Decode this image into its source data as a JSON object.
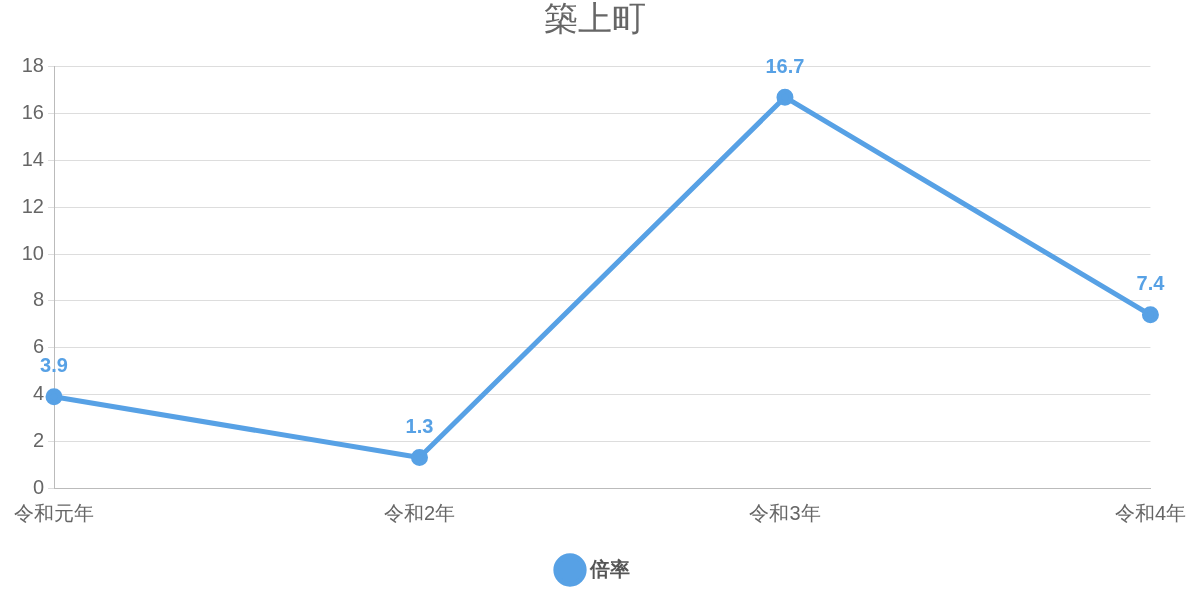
{
  "chart_data": {
    "type": "line",
    "title": "築上町",
    "categories": [
      "令和元年",
      "令和2年",
      "令和3年",
      "令和4年"
    ],
    "series": [
      {
        "name": "倍率",
        "color": "#57a1e5",
        "values": [
          3.9,
          1.3,
          16.7,
          7.4
        ]
      }
    ],
    "ylim": [
      0,
      18
    ],
    "yticks": [
      0,
      2,
      4,
      6,
      8,
      10,
      12,
      14,
      16,
      18
    ],
    "grid": "y",
    "legend": "bottom",
    "marker": "circle",
    "line_style": "solid",
    "data_labels": true
  }
}
